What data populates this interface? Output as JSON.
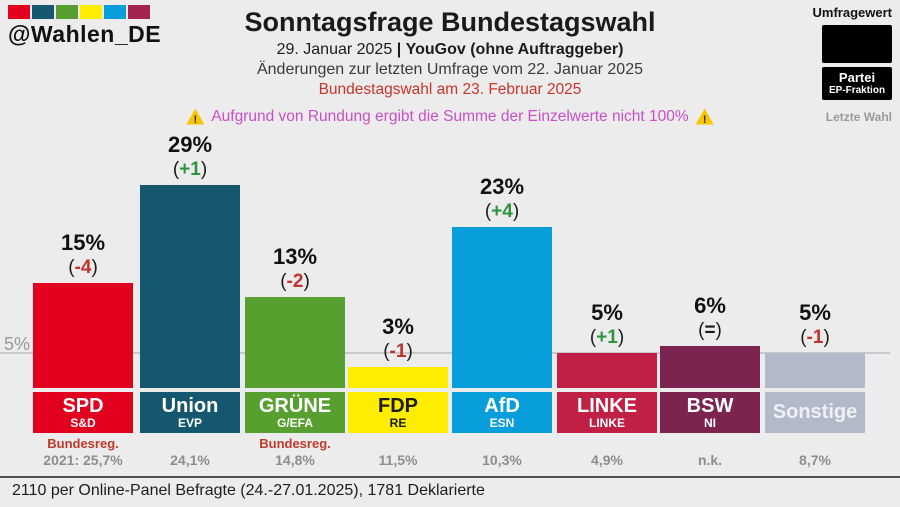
{
  "brand": {
    "handle": "@Wahlen_DE",
    "logo_colors": [
      "#e2001f",
      "#14576f",
      "#57a030",
      "#ffed00",
      "#089edc",
      "#a5244d"
    ]
  },
  "header": {
    "title": "Sonntagsfrage Bundestagswahl",
    "date": "29. Januar 2025",
    "separator": "|",
    "institute": "YouGov (ohne Auftraggeber)",
    "changes_note": "Änderungen zur letzten Umfrage vom 22. Januar 2025",
    "election_note": "Bundestagswahl am 23. Februar 2025",
    "warning": "Aufgrund von Rundung ergibt die Summe der Einzelwerte nicht 100%"
  },
  "legend": {
    "umfragewert": "Umfragewert",
    "partei": "Partei",
    "fraktion": "EP-Fraktion",
    "letzte_wahl": "Letzte Wahl"
  },
  "axis": {
    "five_percent_label": "5%"
  },
  "footer": {
    "text": "2110 per Online-Panel Befragte (24.-27.01.2025), 1781 Deklarierte"
  },
  "colors": {
    "background": "#ececec",
    "change_up": "#2d9440",
    "change_down": "#c0332c",
    "change_same": "#1a1a1a",
    "note_red": "#c0392b",
    "election_note_red": "#ca342c",
    "warning_magenta": "#c750c7"
  },
  "chart_data": {
    "type": "bar",
    "title": "Sonntagsfrage Bundestagswahl",
    "ylabel": "",
    "xlabel": "",
    "ylim": [
      0,
      31
    ],
    "gridline_at": 5,
    "categories": [
      "SPD",
      "Union",
      "GRÜNE",
      "FDP",
      "AfD",
      "LINKE",
      "BSW",
      "Sonstige"
    ],
    "values": [
      15,
      29,
      13,
      3,
      23,
      5,
      6,
      5
    ],
    "parties": [
      {
        "name": "SPD",
        "group": "S&D",
        "value": 15,
        "value_label": "15%",
        "change": "(-4)",
        "change_dir": "down",
        "color": "#e2001f",
        "text_color": "#ffffff",
        "note": "Bundesreg.",
        "last": "2021: 25,7%"
      },
      {
        "name": "Union",
        "group": "EVP",
        "value": 29,
        "value_label": "29%",
        "change": "(+1)",
        "change_dir": "up",
        "color": "#14576f",
        "text_color": "#ffffff",
        "note": "",
        "last": "24,1%"
      },
      {
        "name": "GRÜNE",
        "group": "G/EFA",
        "value": 13,
        "value_label": "13%",
        "change": "(-2)",
        "change_dir": "down",
        "color": "#57a030",
        "text_color": "#ffffff",
        "note": "Bundesreg.",
        "last": "14,8%"
      },
      {
        "name": "FDP",
        "group": "RE",
        "value": 3,
        "value_label": "3%",
        "change": "(-1)",
        "change_dir": "down",
        "color": "#ffed00",
        "text_color": "#1b1b1b",
        "note": "",
        "last": "11,5%"
      },
      {
        "name": "AfD",
        "group": "ESN",
        "value": 23,
        "value_label": "23%",
        "change": "(+4)",
        "change_dir": "up",
        "color": "#089edc",
        "text_color": "#ffffff",
        "note": "",
        "last": "10,3%"
      },
      {
        "name": "LINKE",
        "group": "LINKE",
        "value": 5,
        "value_label": "5%",
        "change": "(+1)",
        "change_dir": "up",
        "color": "#c02045",
        "text_color": "#ffffff",
        "note": "",
        "last": "4,9%"
      },
      {
        "name": "BSW",
        "group": "NI",
        "value": 6,
        "value_label": "6%",
        "change": "(=)",
        "change_dir": "same",
        "color": "#7d2350",
        "text_color": "#ffffff",
        "note": "",
        "last": "n.k."
      },
      {
        "name": "Sonstige",
        "group": "",
        "value": 5,
        "value_label": "5%",
        "change": "(-1)",
        "change_dir": "down",
        "color": "#b2bac9",
        "text_color": "#eef1f6",
        "note": "",
        "last": "8,7%"
      }
    ]
  }
}
